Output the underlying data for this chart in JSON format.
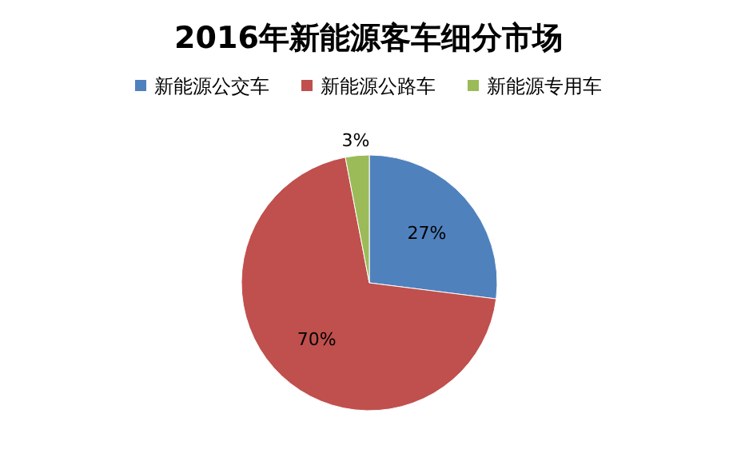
{
  "chart_data": {
    "type": "pie",
    "title": "2016年新能源客车细分市场",
    "categories": [
      "新能源公交车",
      "新能源公路车",
      "新能源专用车"
    ],
    "values": [
      27,
      70,
      3
    ],
    "colors": [
      "#4f81bd",
      "#c0504d",
      "#9bbb59"
    ],
    "value_labels": [
      "27%",
      "70%",
      "3%"
    ],
    "legend": "top"
  }
}
